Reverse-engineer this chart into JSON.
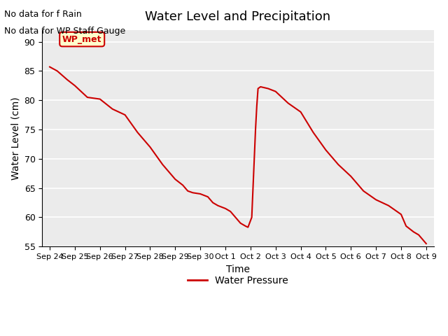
{
  "title": "Water Level and Precipitation",
  "xlabel": "Time",
  "ylabel": "Water Level (cm)",
  "ylim": [
    55,
    92
  ],
  "yticks": [
    55,
    60,
    65,
    70,
    75,
    80,
    85,
    90
  ],
  "background_color": "#ebebeb",
  "line_color": "#cc0000",
  "annotation_text_line1": "No data for f Rain",
  "annotation_text_line2": "No data for WP Staff Gauge",
  "legend_label": "Water Pressure",
  "legend_line_color": "#cc0000",
  "wp_met_label": "WP_met",
  "wp_met_bg": "#ffffcc",
  "wp_met_border": "#cc0000",
  "wp_met_text_color": "#cc0000",
  "x_labels": [
    "Sep 24",
    "Sep 25",
    "Sep 26",
    "Sep 27",
    "Sep 28",
    "Sep 29",
    "Sep 30",
    "Oct 1",
    "Oct 2",
    "Oct 3",
    "Oct 4",
    "Oct 5",
    "Oct 6",
    "Oct 7",
    "Oct 8",
    "Oct 9"
  ],
  "x_days": [
    0.0,
    0.3,
    0.7,
    1.0,
    1.5,
    2.0,
    2.5,
    3.0,
    3.5,
    4.0,
    4.5,
    5.0,
    5.3,
    5.5,
    5.7,
    6.0,
    6.3,
    6.5,
    6.7,
    7.0,
    7.2,
    7.4,
    7.6,
    7.8,
    7.9,
    8.05,
    8.1,
    8.15,
    8.2,
    8.25,
    8.3,
    8.4,
    8.5,
    8.7,
    9.0,
    9.5,
    10.0,
    10.5,
    11.0,
    11.5,
    12.0,
    12.5,
    13.0,
    13.5,
    14.0,
    14.2,
    14.5,
    14.7,
    15.0
  ],
  "y_vals": [
    85.7,
    85.0,
    83.5,
    82.5,
    80.5,
    80.2,
    78.5,
    77.5,
    74.5,
    72.0,
    69.0,
    66.5,
    65.5,
    64.5,
    64.2,
    64.0,
    63.5,
    62.5,
    62.0,
    61.5,
    61.0,
    60.0,
    59.0,
    58.5,
    58.3,
    60.0,
    65.0,
    70.0,
    75.0,
    79.0,
    82.0,
    82.3,
    82.2,
    82.0,
    81.5,
    79.5,
    78.0,
    74.5,
    71.5,
    69.0,
    67.0,
    64.5,
    63.0,
    62.0,
    60.5,
    58.5,
    57.5,
    57.0,
    55.5
  ]
}
